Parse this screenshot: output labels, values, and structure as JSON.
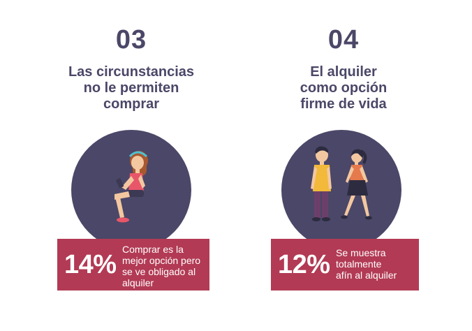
{
  "items": [
    {
      "number": "03",
      "title_lines": [
        "Las circunstancias",
        "no le permiten",
        "comprar"
      ],
      "percent": "14%",
      "description_lines": [
        "Comprar es la",
        "mejor opción pero",
        "se ve obligado al",
        "alquiler"
      ]
    },
    {
      "number": "04",
      "title_lines": [
        "El alquiler",
        "como opción",
        "firme de vida"
      ],
      "percent": "12%",
      "description_lines": [
        "Se muestra",
        "totalmente",
        "afín al alquiler"
      ]
    }
  ],
  "colors": {
    "heading": "#4b4768",
    "circle": "#4b4768",
    "box": "#b23a54",
    "box_text": "#ffffff"
  },
  "icons": {
    "left": "woman-sitting-with-phone-illustration",
    "right": "couple-walking-illustration"
  }
}
